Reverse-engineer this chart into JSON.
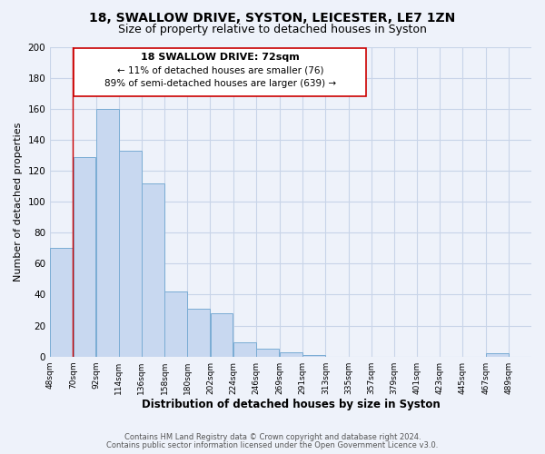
{
  "title": "18, SWALLOW DRIVE, SYSTON, LEICESTER, LE7 1ZN",
  "subtitle": "Size of property relative to detached houses in Syston",
  "xlabel": "Distribution of detached houses by size in Syston",
  "ylabel": "Number of detached properties",
  "bar_left_edges": [
    48,
    70,
    92,
    114,
    136,
    158,
    180,
    202,
    224,
    246,
    269,
    291,
    313,
    335,
    357,
    379,
    401,
    423,
    445,
    467
  ],
  "bar_heights": [
    70,
    129,
    160,
    133,
    112,
    42,
    31,
    28,
    9,
    5,
    3,
    1,
    0,
    0,
    0,
    0,
    0,
    0,
    0,
    2
  ],
  "bar_widths": [
    22,
    22,
    22,
    22,
    22,
    22,
    22,
    22,
    22,
    22,
    22,
    22,
    22,
    22,
    22,
    22,
    22,
    22,
    22,
    22
  ],
  "bar_color": "#c8d8f0",
  "bar_edge_color": "#7aacd4",
  "marker_x": 70,
  "marker_color": "#cc0000",
  "ylim": [
    0,
    200
  ],
  "yticks": [
    0,
    20,
    40,
    60,
    80,
    100,
    120,
    140,
    160,
    180,
    200
  ],
  "xtick_labels": [
    "48sqm",
    "70sqm",
    "92sqm",
    "114sqm",
    "136sqm",
    "158sqm",
    "180sqm",
    "202sqm",
    "224sqm",
    "246sqm",
    "269sqm",
    "291sqm",
    "313sqm",
    "335sqm",
    "357sqm",
    "379sqm",
    "401sqm",
    "423sqm",
    "445sqm",
    "467sqm",
    "489sqm"
  ],
  "xtick_positions": [
    48,
    70,
    92,
    114,
    136,
    158,
    180,
    202,
    224,
    246,
    269,
    291,
    313,
    335,
    357,
    379,
    401,
    423,
    445,
    467,
    489
  ],
  "annotation_title": "18 SWALLOW DRIVE: 72sqm",
  "annotation_line1": "← 11% of detached houses are smaller (76)",
  "annotation_line2": "89% of semi-detached houses are larger (639) →",
  "annotation_box_color": "#ffffff",
  "annotation_box_edge": "#cc0000",
  "footer1": "Contains HM Land Registry data © Crown copyright and database right 2024.",
  "footer2": "Contains public sector information licensed under the Open Government Licence v3.0.",
  "grid_color": "#c8d4e8",
  "background_color": "#eef2fa",
  "title_fontsize": 10,
  "subtitle_fontsize": 9,
  "xlim_left": 48,
  "xlim_right": 511
}
